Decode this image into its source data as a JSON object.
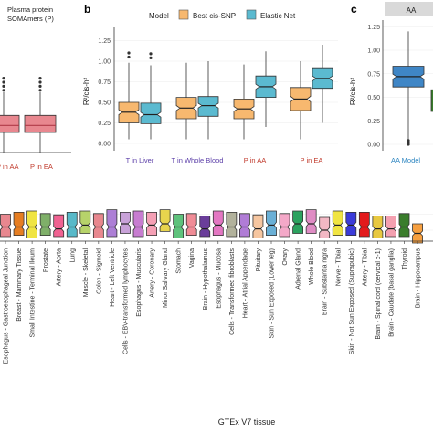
{
  "panels": {
    "a": {
      "legend_lines": [
        "Plasma protein",
        "SOMAmers (P)"
      ],
      "x_labels": [
        "P in AA",
        "P in EA"
      ],
      "x_label_color": "#c0392b",
      "box_color": "#e8878f",
      "median_color": "#b03a48"
    },
    "b": {
      "letter": "b",
      "legend_title": "Model",
      "legend_entries": [
        {
          "name": "Best cis-SNP",
          "color": "#f7b86f"
        },
        {
          "name": "Elastic Net",
          "color": "#5bbad0"
        }
      ],
      "y_label": "R²/cis-h²",
      "y_ticks": [
        "0.00",
        "0.25",
        "0.50",
        "0.75",
        "1.00",
        "1.25"
      ],
      "groups": [
        {
          "label": "T in Liver",
          "color": "#5b3ea8"
        },
        {
          "label": "T in Whole Blood",
          "color": "#5b3ea8"
        },
        {
          "label": "P in AA",
          "color": "#c0392b"
        },
        {
          "label": "P in EA",
          "color": "#c0392b"
        }
      ]
    },
    "c": {
      "letter": "c",
      "strip_label": "AA",
      "y_label": "R²/cis-h²",
      "y_ticks": [
        "0.00",
        "0.25",
        "0.50",
        "0.75",
        "1.00",
        "1.25"
      ],
      "x_labels": [
        "AA Model"
      ],
      "x_label_color": "#2e86c1"
    },
    "bottom": {
      "x_axis_title": "GTEx V7 tissue"
    }
  },
  "chart_data": [
    {
      "panel": "a",
      "type": "box",
      "categories": [
        "P in AA",
        "P in EA"
      ],
      "boxes": [
        {
          "q1": 0.2,
          "median": 0.27,
          "q3": 0.37,
          "whisker_low": 0.0,
          "whisker_high": 0.6,
          "outliers_high": [
            0.62,
            0.66,
            0.7,
            0.74
          ]
        },
        {
          "q1": 0.2,
          "median": 0.27,
          "q3": 0.37,
          "whisker_low": 0.0,
          "whisker_high": 0.6,
          "outliers_high": [
            0.62,
            0.66,
            0.7,
            0.74
          ]
        }
      ]
    },
    {
      "panel": "b",
      "type": "box",
      "ylim": [
        0,
        1.35
      ],
      "categories": [
        "T in Liver",
        "T in Whole Blood",
        "P in AA",
        "P in EA"
      ],
      "series": [
        {
          "name": "Best cis-SNP",
          "boxes": [
            {
              "q1": 0.25,
              "median": 0.38,
              "q3": 0.5,
              "whisker_low": 0.05,
              "whisker_high": 0.98,
              "outliers_high": [
                1.05,
                1.1
              ]
            },
            {
              "q1": 0.3,
              "median": 0.43,
              "q3": 0.56,
              "whisker_low": 0.05,
              "whisker_high": 0.98,
              "outliers_high": []
            },
            {
              "q1": 0.3,
              "median": 0.42,
              "q3": 0.54,
              "whisker_low": 0.05,
              "whisker_high": 0.96,
              "outliers_high": []
            },
            {
              "q1": 0.4,
              "median": 0.54,
              "q3": 0.68,
              "whisker_low": 0.05,
              "whisker_high": 1.0,
              "outliers_high": []
            }
          ]
        },
        {
          "name": "Elastic Net",
          "boxes": [
            {
              "q1": 0.24,
              "median": 0.35,
              "q3": 0.49,
              "whisker_low": 0.05,
              "whisker_high": 0.95,
              "outliers_high": [
                1.04,
                1.09
              ]
            },
            {
              "q1": 0.33,
              "median": 0.46,
              "q3": 0.57,
              "whisker_low": 0.05,
              "whisker_high": 1.0,
              "outliers_high": []
            },
            {
              "q1": 0.56,
              "median": 0.69,
              "q3": 0.82,
              "whisker_low": 0.2,
              "whisker_high": 1.12,
              "outliers_high": []
            },
            {
              "q1": 0.67,
              "median": 0.79,
              "q3": 0.92,
              "whisker_low": 0.25,
              "whisker_high": 1.2,
              "outliers_high": []
            }
          ]
        }
      ]
    },
    {
      "panel": "c",
      "type": "box",
      "ylim": [
        0,
        1.35
      ],
      "categories": [
        "AA Model"
      ],
      "series": [
        {
          "name": "AA Model",
          "boxes": [
            {
              "q1": 0.61,
              "median": 0.72,
              "q3": 0.83,
              "whisker_low": 0.05,
              "whisker_high": 1.2,
              "outliers_low": [
                0.0,
                0.02,
                0.04
              ],
              "outliers_high": []
            }
          ]
        }
      ]
    },
    {
      "panel": "bottom",
      "type": "box",
      "xlabel": "GTEx V7 tissue",
      "categories": [
        "Esophagus - Gastroesophageal Junction",
        "Breast - Mammary Tissue",
        "Small Intestine - Terminal Ileum",
        "Prostate",
        "Artery - Aorta",
        "Lung",
        "Muscle - Skeletal",
        "Colon - Sigmoid",
        "Heart - Left Ventricle",
        "Cells - EBV-transformed lymphocytes",
        "Esophagus - Muscularis",
        "Artery - Coronary",
        "Minor Salivary Gland",
        "Stomach",
        "Vagina",
        "Brain - Hypothalamus",
        "Esophagus - Mucosa",
        "Cells - Transformed fibroblasts",
        "Heart - Atrial Appendage",
        "Pituitary",
        "Skin - Sun Exposed (Lower leg)",
        "Ovary",
        "Adrenal Gland",
        "Whole Blood",
        "Brain - Substantia nigra",
        "Nerve - Tibial",
        "Skin - Not Sun Exposed (Suprapubic)",
        "Artery - Tibial",
        "Brain - Spinal cord (cervical c-1)",
        "Brain - Caudate (basal ganglia)",
        "Thyroid",
        "Brain - Hippocampus"
      ],
      "colors": [
        "#e8878f",
        "#e67e22",
        "#f0e442",
        "#7fb069",
        "#f06292",
        "#58b9c9",
        "#b7d36a",
        "#e8878f",
        "#ad7fd6",
        "#c8a2d8",
        "#c77dd0",
        "#f5a0b5",
        "#e8d44d",
        "#5ec27c",
        "#f08c96",
        "#6a3d9a",
        "#e377c2",
        "#b2b29c",
        "#b07cd6",
        "#f6c6a0",
        "#6ab0d6",
        "#f4a8c8",
        "#2ca25f",
        "#df8cc4",
        "#f3b8c4",
        "#f0e442",
        "#3b3bd9",
        "#e31a1c",
        "#e8c840",
        "#f4a0b0",
        "#3a7d2c",
        "#f7a040"
      ],
      "boxes": [
        {
          "q1": 0.4,
          "median": 0.55,
          "q3": 0.75
        },
        {
          "q1": 0.42,
          "median": 0.55,
          "q3": 0.78
        },
        {
          "q1": 0.38,
          "median": 0.55,
          "q3": 0.8
        },
        {
          "q1": 0.42,
          "median": 0.55,
          "q3": 0.76
        },
        {
          "q1": 0.4,
          "median": 0.52,
          "q3": 0.74
        },
        {
          "q1": 0.4,
          "median": 0.55,
          "q3": 0.78
        },
        {
          "q1": 0.45,
          "median": 0.58,
          "q3": 0.8
        },
        {
          "q1": 0.38,
          "median": 0.55,
          "q3": 0.76
        },
        {
          "q1": 0.4,
          "median": 0.55,
          "q3": 0.82
        },
        {
          "q1": 0.45,
          "median": 0.6,
          "q3": 0.78
        },
        {
          "q1": 0.4,
          "median": 0.55,
          "q3": 0.8
        },
        {
          "q1": 0.42,
          "median": 0.58,
          "q3": 0.78
        },
        {
          "q1": 0.48,
          "median": 0.6,
          "q3": 0.82
        },
        {
          "q1": 0.38,
          "median": 0.55,
          "q3": 0.75
        },
        {
          "q1": 0.42,
          "median": 0.55,
          "q3": 0.76
        },
        {
          "q1": 0.4,
          "median": 0.52,
          "q3": 0.72
        },
        {
          "q1": 0.42,
          "median": 0.58,
          "q3": 0.8
        },
        {
          "q1": 0.4,
          "median": 0.55,
          "q3": 0.78
        },
        {
          "q1": 0.4,
          "median": 0.55,
          "q3": 0.76
        },
        {
          "q1": 0.38,
          "median": 0.52,
          "q3": 0.74
        },
        {
          "q1": 0.42,
          "median": 0.58,
          "q3": 0.8
        },
        {
          "q1": 0.4,
          "median": 0.55,
          "q3": 0.76
        },
        {
          "q1": 0.45,
          "median": 0.6,
          "q3": 0.8
        },
        {
          "q1": 0.45,
          "median": 0.6,
          "q3": 0.82
        },
        {
          "q1": 0.38,
          "median": 0.5,
          "q3": 0.7
        },
        {
          "q1": 0.42,
          "median": 0.58,
          "q3": 0.8
        },
        {
          "q1": 0.42,
          "median": 0.58,
          "q3": 0.78
        },
        {
          "q1": 0.4,
          "median": 0.55,
          "q3": 0.78
        },
        {
          "q1": 0.38,
          "median": 0.52,
          "q3": 0.72
        },
        {
          "q1": 0.4,
          "median": 0.52,
          "q3": 0.72
        },
        {
          "q1": 0.4,
          "median": 0.55,
          "q3": 0.76
        },
        {
          "q1": 0.3,
          "median": 0.45,
          "q3": 0.6
        }
      ]
    }
  ]
}
